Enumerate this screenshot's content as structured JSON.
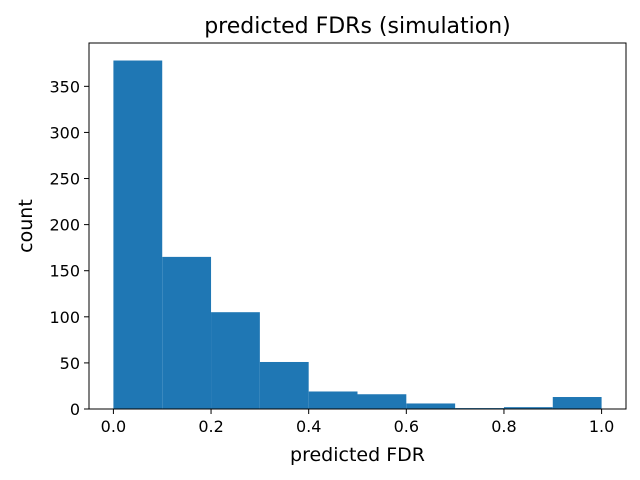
{
  "chart_data": {
    "type": "bar",
    "title": "predicted FDRs (simulation)",
    "xlabel": "predicted FDR",
    "ylabel": "count",
    "bin_edges": [
      0.0,
      0.1,
      0.2,
      0.3,
      0.4,
      0.5,
      0.6,
      0.7,
      0.8,
      0.9,
      1.0
    ],
    "values": [
      378,
      165,
      105,
      51,
      19,
      16,
      6,
      1,
      2,
      13
    ],
    "xlim": [
      -0.05,
      1.05
    ],
    "ylim": [
      0,
      397
    ],
    "xticks": [
      0.0,
      0.2,
      0.4,
      0.6,
      0.8,
      1.0
    ],
    "xtick_labels": [
      "0.0",
      "0.2",
      "0.4",
      "0.6",
      "0.8",
      "1.0"
    ],
    "yticks": [
      0,
      50,
      100,
      150,
      200,
      250,
      300,
      350
    ],
    "ytick_labels": [
      "0",
      "50",
      "100",
      "150",
      "200",
      "250",
      "300",
      "350"
    ],
    "bar_color": "#1f77b4",
    "grid": false
  }
}
